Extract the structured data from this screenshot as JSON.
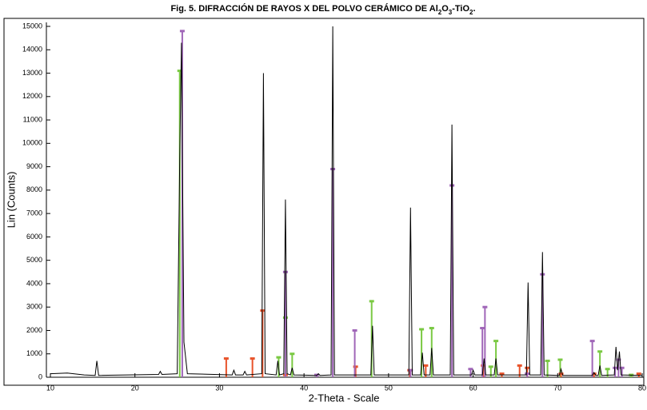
{
  "chart_data": {
    "type": "xrd",
    "title_parts": [
      {
        "text": "Fig. 5. DIFRACCIÓN DE RAYOS X DEL POLVO CERÁMICO DE Al"
      },
      {
        "text": "2",
        "sub": true
      },
      {
        "text": "O"
      },
      {
        "text": "3",
        "sub": true
      },
      {
        "text": "-TiO"
      },
      {
        "text": "2",
        "sub": true
      },
      {
        "text": "."
      }
    ],
    "x_label": "2-Theta - Scale",
    "y_label": "Lin (Counts)",
    "xlim": [
      10,
      80
    ],
    "ylim": [
      0,
      15000
    ],
    "xticks": [
      10,
      20,
      30,
      40,
      50,
      60,
      70,
      80
    ],
    "yticks": [
      0,
      1000,
      2000,
      3000,
      4000,
      5000,
      6000,
      7000,
      8000,
      9000,
      10000,
      11000,
      12000,
      13000,
      14000,
      15000
    ],
    "series": [
      {
        "color": "#000000",
        "x": [
          10,
          12,
          14,
          15.3,
          15.5,
          15.7,
          22.8,
          23,
          23.2,
          25,
          25.3,
          25.5,
          25.8,
          26.2,
          31.5,
          31.7,
          31.9,
          32.8,
          33,
          33.2,
          35.0,
          35.2,
          35.4,
          36.7,
          36.9,
          37.1,
          37.6,
          37.8,
          38.0,
          38.4,
          38.6,
          38.8,
          41.5,
          41.7,
          41.9,
          43.2,
          43.4,
          43.6,
          47.9,
          48.1,
          48.3,
          52.4,
          52.6,
          52.8,
          53.8,
          54.0,
          54.2,
          54.9,
          55.1,
          55.3,
          57.3,
          57.5,
          57.7,
          59.8,
          60.0,
          60.2,
          61.1,
          61.3,
          61.5,
          62.5,
          62.7,
          62.9,
          66.3,
          66.5,
          66.7,
          68.0,
          68.2,
          68.4,
          70.2,
          70.4,
          70.6,
          74.1,
          74.3,
          74.5,
          74.8,
          75.0,
          75.2,
          76.7,
          76.9,
          77.1,
          77.3,
          77.5,
          80
        ],
        "values": [
          150,
          180,
          100,
          80,
          700,
          80,
          120,
          250,
          120,
          150,
          9300,
          14300,
          1500,
          150,
          100,
          300,
          100,
          100,
          250,
          100,
          150,
          13000,
          150,
          100,
          700,
          100,
          150,
          7600,
          150,
          100,
          400,
          100,
          80,
          150,
          80,
          100,
          15000,
          100,
          100,
          2200,
          100,
          100,
          7250,
          100,
          100,
          1050,
          100,
          100,
          1250,
          100,
          100,
          10800,
          100,
          100,
          300,
          100,
          100,
          800,
          100,
          100,
          800,
          100,
          100,
          4050,
          100,
          100,
          5350,
          100,
          80,
          350,
          80,
          80,
          200,
          80,
          80,
          500,
          80,
          100,
          1300,
          300,
          1100,
          100,
          80
        ]
      }
    ],
    "sticks": [
      {
        "color": "#7ac943",
        "x": [
          25.3,
          37.0,
          37.8,
          38.6,
          48.0,
          53.9,
          55.1,
          62.1,
          62.7,
          68.8,
          70.3,
          75.0,
          75.9,
          78.7
        ],
        "values": [
          13100,
          850,
          2550,
          1000,
          3250,
          2050,
          2100,
          450,
          1550,
          700,
          750,
          1100,
          350,
          100
        ]
      },
      {
        "color": "#e8532b",
        "x": [
          30.8,
          33.9,
          35.1,
          37.8,
          46.1,
          52.5,
          54.4,
          61.2,
          63.4,
          65.5,
          66.4,
          70.4,
          74.3,
          79.6
        ],
        "values": [
          800,
          800,
          2850,
          100,
          450,
          300,
          500,
          500,
          150,
          500,
          400,
          150,
          150,
          150
        ]
      },
      {
        "color": "#a066b8",
        "x": [
          25.6,
          37.8,
          41.5,
          43.4,
          46.0,
          52.6,
          57.5,
          59.7,
          61.1,
          61.4,
          66.4,
          68.2,
          74.1,
          76.8,
          77.2,
          77.6
        ],
        "values": [
          14800,
          4500,
          100,
          8900,
          2000,
          300,
          8200,
          350,
          2100,
          3000,
          150,
          4400,
          1550,
          400,
          750,
          400
        ]
      }
    ]
  }
}
